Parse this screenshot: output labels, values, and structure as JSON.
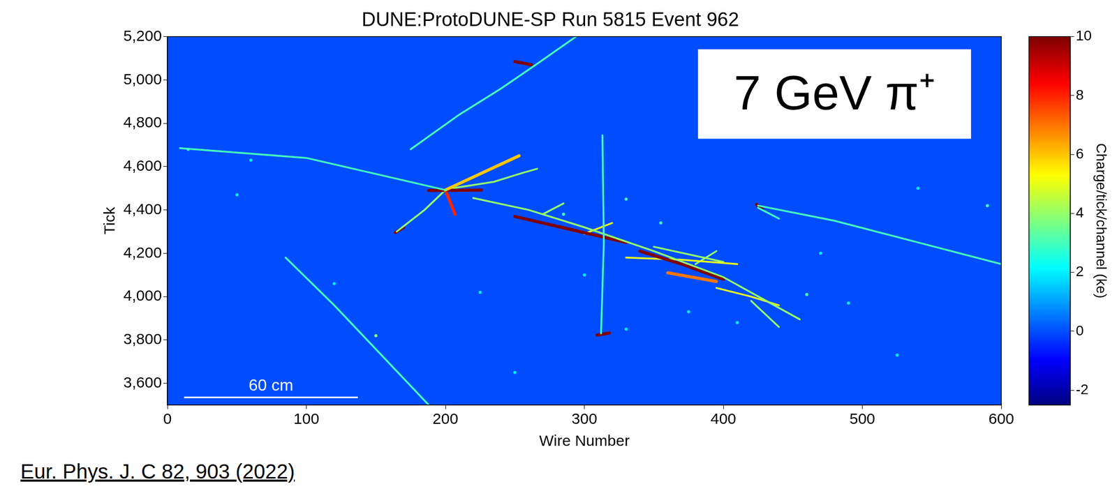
{
  "chart_data": {
    "type": "scatter",
    "title": "DUNE:ProtoDUNE-SP Run 5815 Event 962",
    "x_label": "Wire Number",
    "y_label": "Tick",
    "xlim": [
      0,
      600
    ],
    "xticks": [
      0,
      100,
      200,
      300,
      400,
      500,
      600
    ],
    "ylim": [
      3500,
      5200
    ],
    "yticks": [
      3600,
      3800,
      4000,
      4200,
      4400,
      4600,
      4800,
      5000,
      5200
    ],
    "grid": false,
    "background_charge": 0,
    "series": [
      {
        "charge": 3,
        "values": [
          [
            9,
            4685
          ],
          [
            100,
            4640
          ],
          [
            200,
            4492
          ]
        ]
      },
      {
        "charge": 3,
        "values": [
          [
            175,
            4680
          ],
          [
            210,
            4840
          ],
          [
            240,
            4960
          ],
          [
            265,
            5070
          ],
          [
            294,
            5200
          ]
        ]
      },
      {
        "charge": 10,
        "values": [
          [
            250,
            5085
          ],
          [
            262,
            5070
          ]
        ]
      },
      {
        "charge": 3,
        "values": [
          [
            85,
            4180
          ],
          [
            120,
            3960
          ],
          [
            188,
            3500
          ]
        ]
      },
      {
        "charge": 3,
        "values": [
          [
            313,
            4745
          ],
          [
            314,
            4250
          ],
          [
            312,
            3830
          ]
        ]
      },
      {
        "charge": 10,
        "values": [
          [
            309,
            3822
          ],
          [
            318,
            3832
          ]
        ]
      },
      {
        "charge": 3,
        "values": [
          [
            425,
            4420
          ],
          [
            480,
            4350
          ],
          [
            540,
            4250
          ],
          [
            600,
            4150
          ]
        ]
      },
      {
        "charge": 3,
        "values": [
          [
            425,
            4410
          ],
          [
            440,
            4360
          ]
        ]
      },
      {
        "charge": 10,
        "values": [
          [
            424,
            4425
          ],
          [
            428,
            4405
          ]
        ]
      },
      {
        "charge": 6,
        "values": [
          [
            200,
            4492
          ],
          [
            253,
            4650
          ]
        ]
      },
      {
        "charge": 10,
        "values": [
          [
            188,
            4490
          ],
          [
            226,
            4492
          ]
        ]
      },
      {
        "charge": 4,
        "values": [
          [
            200,
            4492
          ],
          [
            185,
            4400
          ],
          [
            165,
            4300
          ]
        ]
      },
      {
        "charge": 10,
        "values": [
          [
            170,
            4320
          ],
          [
            164,
            4296
          ]
        ]
      },
      {
        "charge": 8,
        "values": [
          [
            200,
            4492
          ],
          [
            207,
            4380
          ]
        ]
      },
      {
        "charge": 4,
        "values": [
          [
            205,
            4500
          ],
          [
            235,
            4530
          ],
          [
            255,
            4570
          ],
          [
            266,
            4590
          ]
        ]
      },
      {
        "charge": 4,
        "values": [
          [
            220,
            4455
          ],
          [
            260,
            4400
          ],
          [
            300,
            4320
          ],
          [
            350,
            4210
          ],
          [
            400,
            4090
          ],
          [
            455,
            3895
          ]
        ]
      },
      {
        "charge": 10,
        "values": [
          [
            250,
            4370
          ],
          [
            290,
            4310
          ],
          [
            330,
            4250
          ]
        ]
      },
      {
        "charge": 10,
        "values": [
          [
            340,
            4210
          ],
          [
            370,
            4150
          ],
          [
            400,
            4080
          ]
        ]
      },
      {
        "charge": 5,
        "values": [
          [
            330,
            4180
          ],
          [
            370,
            4170
          ],
          [
            410,
            4150
          ]
        ]
      },
      {
        "charge": 4,
        "values": [
          [
            350,
            4230
          ],
          [
            400,
            4160
          ]
        ]
      },
      {
        "charge": 7,
        "values": [
          [
            360,
            4110
          ],
          [
            395,
            4070
          ]
        ]
      },
      {
        "charge": 5,
        "values": [
          [
            395,
            4040
          ],
          [
            420,
            4000
          ],
          [
            440,
            3960
          ]
        ]
      },
      {
        "charge": 4,
        "values": [
          [
            420,
            3980
          ],
          [
            430,
            3920
          ],
          [
            440,
            3860
          ]
        ]
      },
      {
        "charge": 4,
        "values": [
          [
            380,
            4150
          ],
          [
            395,
            4210
          ]
        ]
      },
      {
        "charge": 5,
        "values": [
          [
            300,
            4290
          ],
          [
            320,
            4340
          ]
        ]
      },
      {
        "charge": 4,
        "values": [
          [
            270,
            4380
          ],
          [
            285,
            4430
          ]
        ]
      }
    ],
    "blips": [
      [
        15,
        4680,
        3
      ],
      [
        60,
        4630,
        2
      ],
      [
        150,
        3820,
        4
      ],
      [
        225,
        4020,
        2
      ],
      [
        285,
        4380,
        3
      ],
      [
        330,
        3850,
        2
      ],
      [
        300,
        4100,
        2
      ],
      [
        355,
        4340,
        3
      ],
      [
        375,
        3930,
        2
      ],
      [
        410,
        3880,
        2
      ],
      [
        460,
        4010,
        3
      ],
      [
        490,
        3970,
        2
      ],
      [
        525,
        3730,
        2
      ],
      [
        540,
        4500,
        2
      ],
      [
        590,
        4420,
        3
      ],
      [
        50,
        4470,
        2
      ],
      [
        120,
        4060,
        2
      ],
      [
        250,
        3650,
        2
      ],
      [
        470,
        4200,
        2
      ],
      [
        330,
        4450,
        3
      ]
    ],
    "colorbar": {
      "label": "Charge/tick/channel (ke)",
      "range": [
        -2.5,
        10
      ],
      "ticks": [
        -2,
        0,
        2,
        4,
        6,
        8,
        10
      ]
    },
    "annotations": [
      {
        "text": "7 GeV π⁺",
        "x": 480,
        "y": 4935
      }
    ],
    "scale_bar": {
      "label": "60 cm",
      "x": [
        12,
        137
      ],
      "y": 3535
    },
    "citation": "Eur. Phys. J. C 82, 903 (2022)"
  }
}
